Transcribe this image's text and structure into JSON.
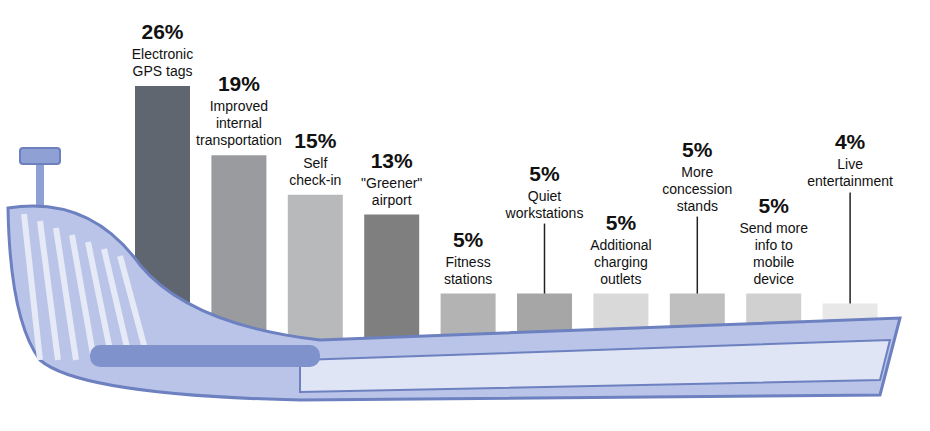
{
  "chart_data": {
    "type": "bar",
    "categories": [
      "Electronic GPS tags",
      "Improved internal transportation",
      "Self check-in",
      "\"Greener\" airport",
      "Fitness stations",
      "Quiet workstations",
      "Additional charging outlets",
      "More concession stands",
      "Send more info to mobile device",
      "Live entertainment"
    ],
    "values": [
      26,
      19,
      15,
      13,
      5,
      5,
      5,
      5,
      5,
      4
    ],
    "value_labels": [
      "26%",
      "19%",
      "15%",
      "13%",
      "5%",
      "5%",
      "5%",
      "5%",
      "5%",
      "4%"
    ],
    "colors": [
      "#5f6670",
      "#9a9b9f",
      "#b8b9bb",
      "#7f7f7f",
      "#b3b3b3",
      "#a6a6a6",
      "#d9d9d9",
      "#bfbfbf",
      "#d0d0d0",
      "#e8e8e8"
    ],
    "ylim": [
      0,
      26
    ],
    "data_labels": true,
    "tick_labels": false,
    "grid": false
  }
}
